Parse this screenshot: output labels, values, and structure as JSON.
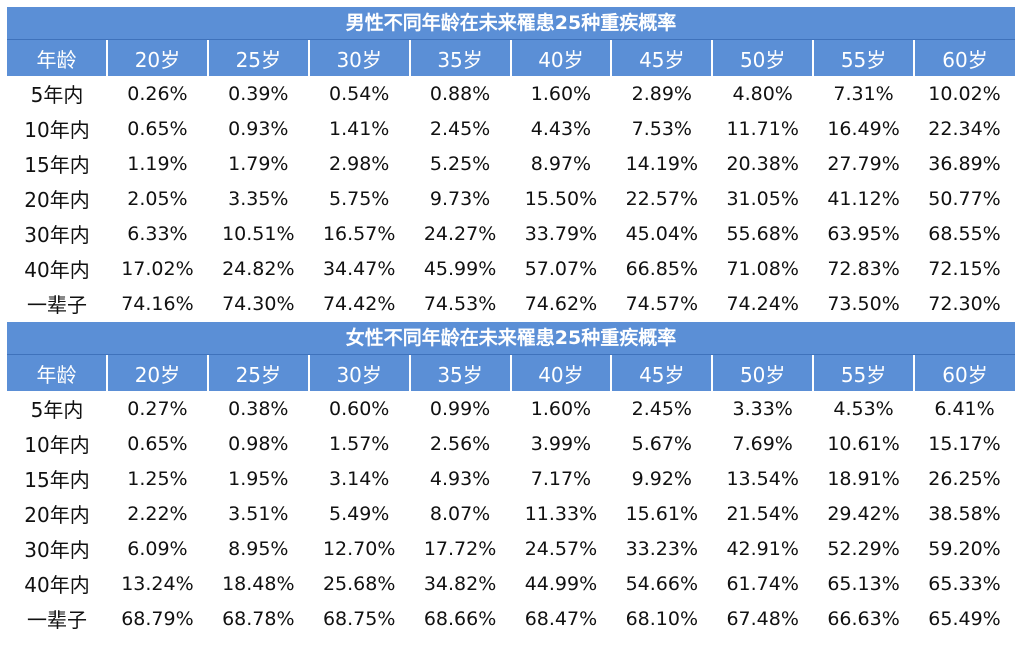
{
  "colors": {
    "header_bg": "#5b8fd6",
    "header_text": "#ffffff",
    "cell_text": "#111111"
  },
  "tables": [
    {
      "title": "男性不同年龄在未来罹患25种重疾概率",
      "headers": [
        "年龄",
        "20岁",
        "25岁",
        "30岁",
        "35岁",
        "40岁",
        "45岁",
        "50岁",
        "55岁",
        "60岁"
      ],
      "rows": [
        [
          "5年内",
          "0.26%",
          "0.39%",
          "0.54%",
          "0.88%",
          "1.60%",
          "2.89%",
          "4.80%",
          "7.31%",
          "10.02%"
        ],
        [
          "10年内",
          "0.65%",
          "0.93%",
          "1.41%",
          "2.45%",
          "4.43%",
          "7.53%",
          "11.71%",
          "16.49%",
          "22.34%"
        ],
        [
          "15年内",
          "1.19%",
          "1.79%",
          "2.98%",
          "5.25%",
          "8.97%",
          "14.19%",
          "20.38%",
          "27.79%",
          "36.89%"
        ],
        [
          "20年内",
          "2.05%",
          "3.35%",
          "5.75%",
          "9.73%",
          "15.50%",
          "22.57%",
          "31.05%",
          "41.12%",
          "50.77%"
        ],
        [
          "30年内",
          "6.33%",
          "10.51%",
          "16.57%",
          "24.27%",
          "33.79%",
          "45.04%",
          "55.68%",
          "63.95%",
          "68.55%"
        ],
        [
          "40年内",
          "17.02%",
          "24.82%",
          "34.47%",
          "45.99%",
          "57.07%",
          "66.85%",
          "71.08%",
          "72.83%",
          "72.15%"
        ],
        [
          "一辈子",
          "74.16%",
          "74.30%",
          "74.42%",
          "74.53%",
          "74.62%",
          "74.57%",
          "74.24%",
          "73.50%",
          "72.30%"
        ]
      ]
    },
    {
      "title": "女性不同年龄在未来罹患25种重疾概率",
      "headers": [
        "年龄",
        "20岁",
        "25岁",
        "30岁",
        "35岁",
        "40岁",
        "45岁",
        "50岁",
        "55岁",
        "60岁"
      ],
      "rows": [
        [
          "5年内",
          "0.27%",
          "0.38%",
          "0.60%",
          "0.99%",
          "1.60%",
          "2.45%",
          "3.33%",
          "4.53%",
          "6.41%"
        ],
        [
          "10年内",
          "0.65%",
          "0.98%",
          "1.57%",
          "2.56%",
          "3.99%",
          "5.67%",
          "7.69%",
          "10.61%",
          "15.17%"
        ],
        [
          "15年内",
          "1.25%",
          "1.95%",
          "3.14%",
          "4.93%",
          "7.17%",
          "9.92%",
          "13.54%",
          "18.91%",
          "26.25%"
        ],
        [
          "20年内",
          "2.22%",
          "3.51%",
          "5.49%",
          "8.07%",
          "11.33%",
          "15.61%",
          "21.54%",
          "29.42%",
          "38.58%"
        ],
        [
          "30年内",
          "6.09%",
          "8.95%",
          "12.70%",
          "17.72%",
          "24.57%",
          "33.23%",
          "42.91%",
          "52.29%",
          "59.20%"
        ],
        [
          "40年内",
          "13.24%",
          "18.48%",
          "25.68%",
          "34.82%",
          "44.99%",
          "54.66%",
          "61.74%",
          "65.13%",
          "65.33%"
        ],
        [
          "一辈子",
          "68.79%",
          "68.78%",
          "68.75%",
          "68.66%",
          "68.47%",
          "68.10%",
          "67.48%",
          "66.63%",
          "65.49%"
        ]
      ]
    }
  ]
}
